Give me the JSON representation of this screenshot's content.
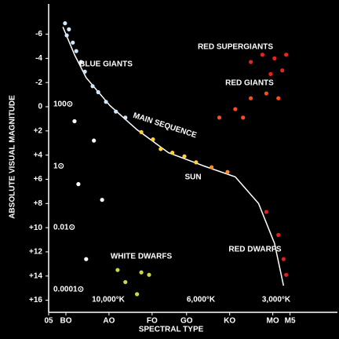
{
  "chart_data": {
    "type": "scatter",
    "background": "#000000",
    "xlabel": "SPECTRAL TYPE",
    "ylabel": "ABSOLUTE VISUAL MAGNITUDE",
    "xlim": [
      -0.5,
      6.2
    ],
    "ylim": [
      -8.5,
      17
    ],
    "y_inverted": true,
    "xticks": [
      {
        "value": -0.5,
        "label": "05"
      },
      {
        "value": -0.1,
        "label": "BO"
      },
      {
        "value": 0.9,
        "label": "AO"
      },
      {
        "value": 1.9,
        "label": "FO"
      },
      {
        "value": 2.7,
        "label": "GO"
      },
      {
        "value": 3.7,
        "label": "KO"
      },
      {
        "value": 4.7,
        "label": "MO"
      },
      {
        "value": 5.1,
        "label": "M5"
      }
    ],
    "yticks": [
      -6,
      -4,
      -2,
      0,
      {
        "value": 2,
        "label": "+2"
      },
      {
        "value": 4,
        "label": "+4"
      },
      {
        "value": 6,
        "label": "+6"
      },
      {
        "value": 8,
        "label": "+8"
      },
      {
        "value": 10,
        "label": "+10"
      },
      {
        "value": 12,
        "label": "+12"
      },
      {
        "value": 14,
        "label": "+14"
      },
      {
        "value": 16,
        "label": "+16"
      }
    ],
    "series": [
      {
        "kind": "line",
        "color": "#ffffff",
        "x": [
          -0.17,
          0.1,
          0.37,
          0.92,
          1.55,
          2.28,
          3.1,
          3.83,
          4.37,
          4.74,
          4.95
        ],
        "values": [
          -6.6,
          -4.3,
          -2.4,
          -0.1,
          1.9,
          3.8,
          4.9,
          5.8,
          8.0,
          11.3,
          14.8
        ]
      },
      {
        "kind": "points",
        "color": "#cfe6ff",
        "x": [
          -0.12,
          -0.03,
          -0.08,
          0.06,
          0.14,
          0.25,
          0.34,
          0.52,
          0.65,
          0.83,
          1.06,
          1.28
        ],
        "values": [
          -6.9,
          -6.4,
          -5.9,
          -5.3,
          -4.6,
          -3.7,
          -2.9,
          -1.7,
          -1.2,
          -0.4,
          0.4,
          0.9
        ]
      },
      {
        "kind": "points",
        "color": "#ffd23a",
        "x": [
          1.65,
          1.92,
          2.1,
          2.37,
          2.65,
          2.92
        ],
        "values": [
          2.1,
          2.7,
          3.5,
          3.8,
          4.1,
          4.6
        ]
      },
      {
        "kind": "points",
        "color": "#ff8a1e",
        "x": [
          3.28,
          3.65
        ],
        "values": [
          5.0,
          5.4
        ]
      },
      {
        "kind": "points",
        "color": "#e0201e",
        "x": [
          4.55,
          4.83,
          4.95,
          5.01
        ],
        "values": [
          8.7,
          10.6,
          12.6,
          13.9
        ]
      },
      {
        "kind": "points",
        "color": "#ff4a1a",
        "x": [
          3.46,
          3.83,
          4.19,
          4.55,
          4.83,
          4.01
        ],
        "values": [
          0.9,
          0.2,
          -0.7,
          -1.1,
          -0.7,
          0.9
        ]
      },
      {
        "kind": "points",
        "color": "#e8231e",
        "x": [
          4.19,
          4.46,
          4.74,
          5.01,
          4.92,
          4.65
        ],
        "values": [
          -3.7,
          -4.3,
          -4.0,
          -4.3,
          -3.0,
          -2.7
        ]
      },
      {
        "kind": "points",
        "color": "#c8d84a",
        "x": [
          1.1,
          1.28,
          1.65,
          1.83,
          1.55
        ],
        "values": [
          13.5,
          14.5,
          13.7,
          13.9,
          15.5
        ]
      },
      {
        "kind": "points",
        "color": "#ffffff",
        "x": [
          0.1,
          0.55,
          0.19,
          0.74,
          0.37
        ],
        "values": [
          1.2,
          2.8,
          6.4,
          7.7,
          12.6
        ]
      }
    ],
    "annotations": [
      "BLUE GIANTS",
      "RED SUPERGIANTS",
      "RED GIANTS",
      "MAIN SEQUENCE",
      "SUN",
      "WHITE DWARFS",
      "RED DWARFS"
    ],
    "luminosity_labels": [
      "100⊙",
      "1⊙",
      "0.01⊙",
      "0.0001⊙"
    ],
    "temperature_labels": [
      "10,000°K",
      "6,000°K",
      "3,000°K"
    ]
  }
}
